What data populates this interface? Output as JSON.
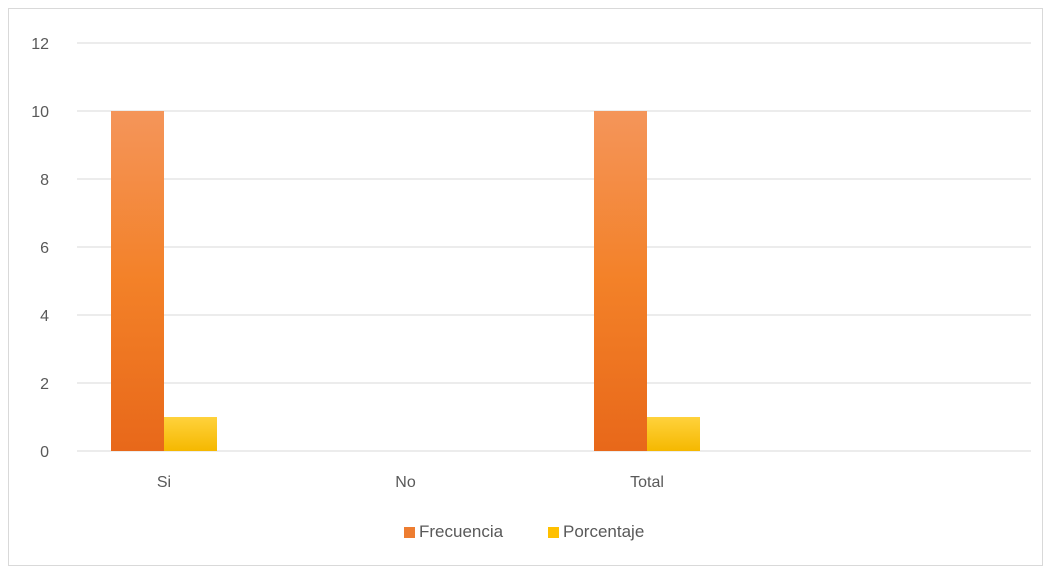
{
  "chart_data": {
    "type": "bar",
    "categories": [
      "Si",
      "No",
      "Total"
    ],
    "series": [
      {
        "name": "Frecuencia",
        "values": [
          10,
          0,
          10
        ],
        "color": "#ED7D31"
      },
      {
        "name": "Porcentaje",
        "values": [
          1,
          0,
          1
        ],
        "color": "#FFC000"
      }
    ],
    "ylim": [
      0,
      12
    ],
    "yticks": [
      0,
      2,
      4,
      6,
      8,
      10,
      12
    ],
    "grid": true,
    "legend_position": "bottom"
  }
}
